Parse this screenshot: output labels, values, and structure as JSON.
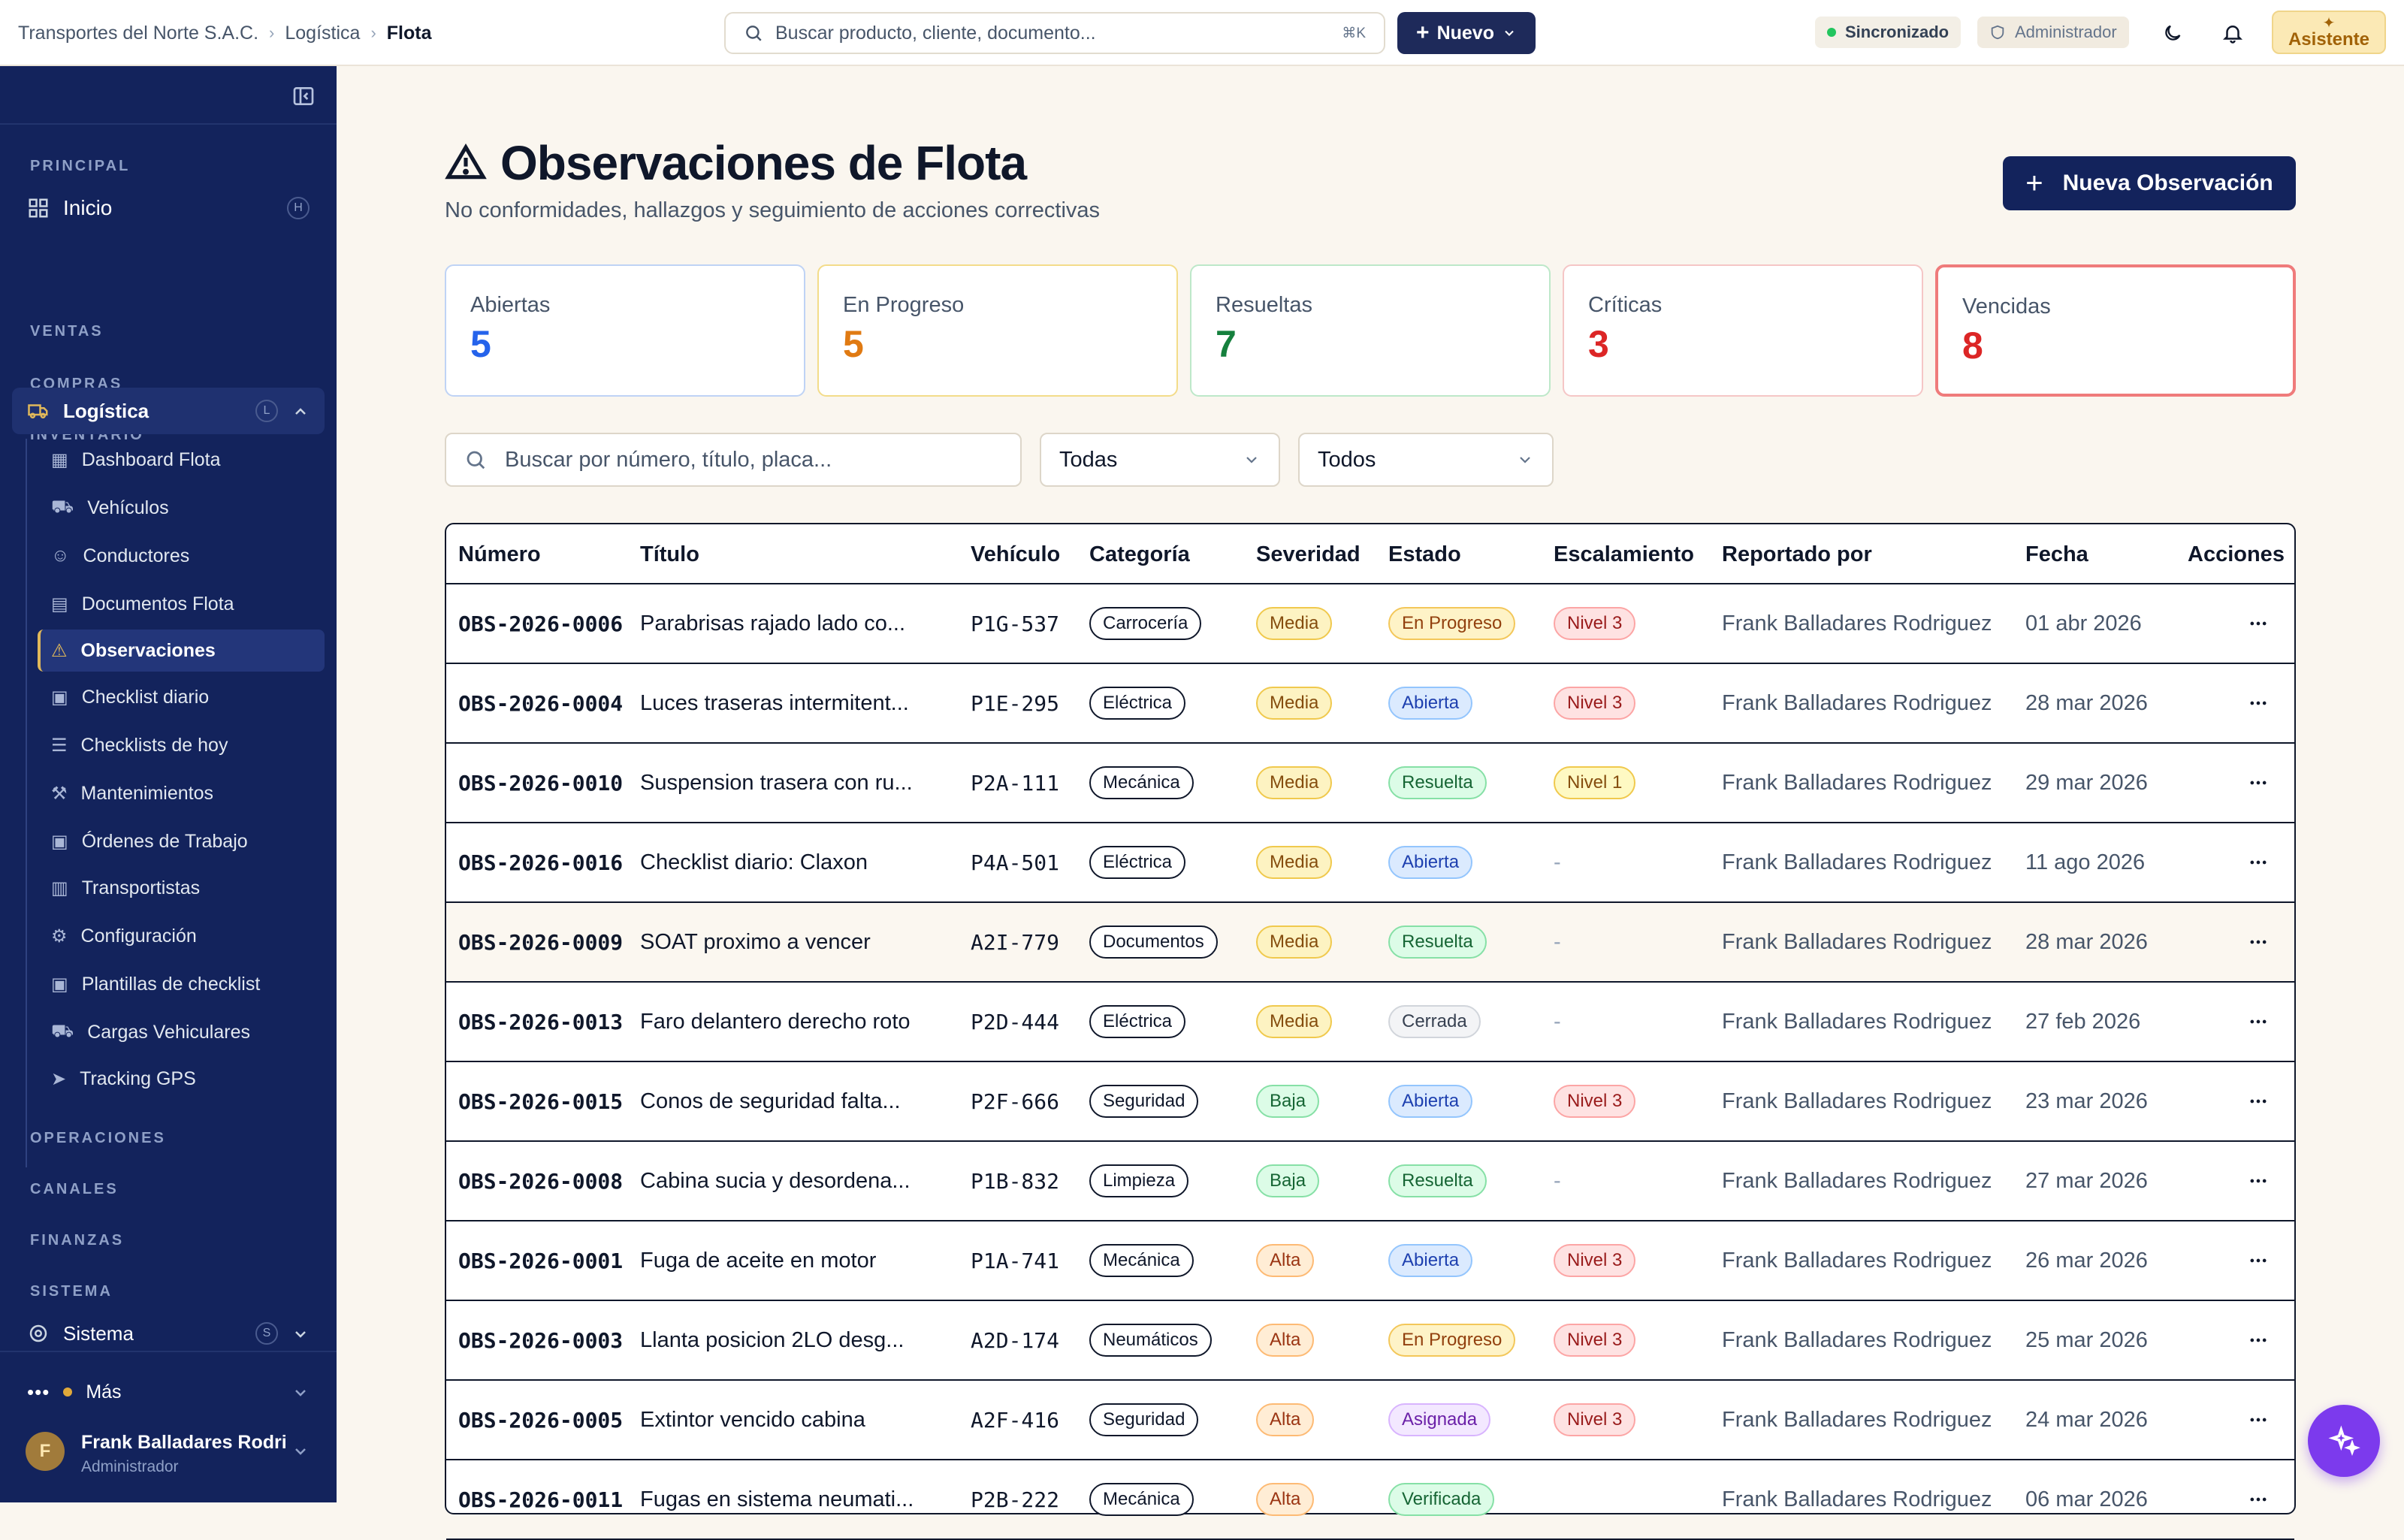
{
  "breadcrumb": {
    "company": "Transportes del Norte S.A.C.",
    "module": "Logística",
    "current": "Flota"
  },
  "global_search": {
    "placeholder": "Buscar producto, cliente, documento...",
    "shortcut": "⌘K"
  },
  "nuevo_button": "Nuevo",
  "status": {
    "sync": "Sincronizado",
    "role": "Administrador"
  },
  "assistant_button": "Asistente",
  "sidebar": {
    "sections": {
      "principal": "PRINCIPAL",
      "ventas": "VENTAS",
      "compras": "COMPRAS",
      "inventario": "INVENTARIO",
      "operaciones": "OPERACIONES",
      "canales": "CANALES",
      "finanzas": "FINANZAS",
      "sistema": "SISTEMA"
    },
    "inicio": {
      "label": "Inicio",
      "shortcut": "H"
    },
    "logistica": {
      "label": "Logística",
      "shortcut": "L"
    },
    "subitems": [
      "Dashboard Flota",
      "Vehículos",
      "Conductores",
      "Documentos Flota",
      "Observaciones",
      "Checklist diario",
      "Checklists de hoy",
      "Mantenimientos",
      "Órdenes de Trabajo",
      "Transportistas",
      "Configuración",
      "Plantillas de checklist",
      "Cargas Vehiculares",
      "Tracking GPS"
    ],
    "sistema": {
      "label": "Sistema",
      "shortcut": "S"
    },
    "mas": "Más",
    "user": {
      "initial": "F",
      "name": "Frank Balladares Rodri",
      "role": "Administrador"
    }
  },
  "page": {
    "title": "Observaciones de Flota",
    "subtitle": "No conformidades, hallazgos y seguimiento de acciones correctivas",
    "new_button": "Nueva Observación"
  },
  "stats": [
    {
      "label": "Abiertas",
      "value": "5",
      "color": "#2563eb",
      "border": "#bfd3f5"
    },
    {
      "label": "En Progreso",
      "value": "5",
      "color": "#e07a12",
      "border": "#f3dc8a"
    },
    {
      "label": "Resueltas",
      "value": "7",
      "color": "#15803d",
      "border": "#bde8c9"
    },
    {
      "label": "Críticas",
      "value": "3",
      "color": "#dc2626",
      "border": "#f5c6c6"
    },
    {
      "label": "Vencidas",
      "value": "8",
      "color": "#dc2626",
      "border": "#ef7b7b"
    }
  ],
  "filters": {
    "search_placeholder": "Buscar por número, título, placa...",
    "select1": "Todas",
    "select2": "Todos"
  },
  "table": {
    "headers": [
      "Número",
      "Título",
      "Vehículo",
      "Categoría",
      "Severidad",
      "Estado",
      "Escalamiento",
      "Reportado por",
      "Fecha",
      "Acciones"
    ],
    "rows": [
      {
        "numero": "OBS-2026-0006",
        "titulo": "Parabrisas rajado lado co...",
        "vehiculo": "P1G-537",
        "categoria": "Carrocería",
        "severidad": "Media",
        "estado": "En Progreso",
        "escalamiento": "Nivel 3",
        "reportado": "Frank Balladares Rodriguez",
        "fecha": "01 abr 2026"
      },
      {
        "numero": "OBS-2026-0004",
        "titulo": "Luces traseras intermitent...",
        "vehiculo": "P1E-295",
        "categoria": "Eléctrica",
        "severidad": "Media",
        "estado": "Abierta",
        "escalamiento": "Nivel 3",
        "reportado": "Frank Balladares Rodriguez",
        "fecha": "28 mar 2026"
      },
      {
        "numero": "OBS-2026-0010",
        "titulo": "Suspension trasera con ru...",
        "vehiculo": "P2A-111",
        "categoria": "Mecánica",
        "severidad": "Media",
        "estado": "Resuelta",
        "escalamiento": "Nivel 1",
        "reportado": "Frank Balladares Rodriguez",
        "fecha": "29 mar 2026"
      },
      {
        "numero": "OBS-2026-0016",
        "titulo": "Checklist diario: Claxon",
        "vehiculo": "P4A-501",
        "categoria": "Eléctrica",
        "severidad": "Media",
        "estado": "Abierta",
        "escalamiento": "-",
        "reportado": "Frank Balladares Rodriguez",
        "fecha": "11 ago 2026"
      },
      {
        "numero": "OBS-2026-0009",
        "titulo": "SOAT proximo a vencer",
        "vehiculo": "A2I-779",
        "categoria": "Documentos",
        "severidad": "Media",
        "estado": "Resuelta",
        "escalamiento": "-",
        "reportado": "Frank Balladares Rodriguez",
        "fecha": "28 mar 2026"
      },
      {
        "numero": "OBS-2026-0013",
        "titulo": "Faro delantero derecho roto",
        "vehiculo": "P2D-444",
        "categoria": "Eléctrica",
        "severidad": "Media",
        "estado": "Cerrada",
        "escalamiento": "-",
        "reportado": "Frank Balladares Rodriguez",
        "fecha": "27 feb 2026"
      },
      {
        "numero": "OBS-2026-0015",
        "titulo": "Conos de seguridad falta...",
        "vehiculo": "P2F-666",
        "categoria": "Seguridad",
        "severidad": "Baja",
        "estado": "Abierta",
        "escalamiento": "Nivel 3",
        "reportado": "Frank Balladares Rodriguez",
        "fecha": "23 mar 2026"
      },
      {
        "numero": "OBS-2026-0008",
        "titulo": "Cabina sucia y desordena...",
        "vehiculo": "P1B-832",
        "categoria": "Limpieza",
        "severidad": "Baja",
        "estado": "Resuelta",
        "escalamiento": "-",
        "reportado": "Frank Balladares Rodriguez",
        "fecha": "27 mar 2026"
      },
      {
        "numero": "OBS-2026-0001",
        "titulo": "Fuga de aceite en motor",
        "vehiculo": "P1A-741",
        "categoria": "Mecánica",
        "severidad": "Alta",
        "estado": "Abierta",
        "escalamiento": "Nivel 3",
        "reportado": "Frank Balladares Rodriguez",
        "fecha": "26 mar 2026"
      },
      {
        "numero": "OBS-2026-0003",
        "titulo": "Llanta posicion 2LO desg...",
        "vehiculo": "A2D-174",
        "categoria": "Neumáticos",
        "severidad": "Alta",
        "estado": "En Progreso",
        "escalamiento": "Nivel 3",
        "reportado": "Frank Balladares Rodriguez",
        "fecha": "25 mar 2026"
      },
      {
        "numero": "OBS-2026-0005",
        "titulo": "Extintor vencido cabina",
        "vehiculo": "A2F-416",
        "categoria": "Seguridad",
        "severidad": "Alta",
        "estado": "Asignada",
        "escalamiento": "Nivel 3",
        "reportado": "Frank Balladares Rodriguez",
        "fecha": "24 mar 2026"
      },
      {
        "numero": "OBS-2026-0011",
        "titulo": "Fugas en sistema neumati...",
        "vehiculo": "P2B-222",
        "categoria": "Mecánica",
        "severidad": "Alta",
        "estado": "Verificada",
        "escalamiento": "",
        "reportado": "Frank Balladares Rodriguez",
        "fecha": "06 mar 2026"
      }
    ]
  }
}
